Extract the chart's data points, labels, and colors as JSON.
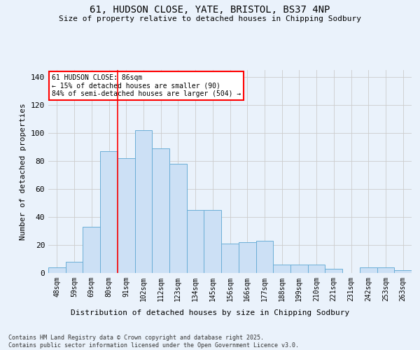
{
  "title_line1": "61, HUDSON CLOSE, YATE, BRISTOL, BS37 4NP",
  "title_line2": "Size of property relative to detached houses in Chipping Sodbury",
  "xlabel": "Distribution of detached houses by size in Chipping Sodbury",
  "ylabel": "Number of detached properties",
  "bar_labels": [
    "48sqm",
    "59sqm",
    "69sqm",
    "80sqm",
    "91sqm",
    "102sqm",
    "112sqm",
    "123sqm",
    "134sqm",
    "145sqm",
    "156sqm",
    "166sqm",
    "177sqm",
    "188sqm",
    "199sqm",
    "210sqm",
    "221sqm",
    "231sqm",
    "242sqm",
    "253sqm",
    "263sqm"
  ],
  "bar_values": [
    4,
    8,
    33,
    87,
    82,
    102,
    89,
    78,
    45,
    45,
    21,
    22,
    23,
    6,
    6,
    6,
    3,
    0,
    4,
    4,
    2
  ],
  "bar_color": "#cce0f5",
  "bar_edge_color": "#6aaed6",
  "grid_color": "#cccccc",
  "bg_color": "#eaf2fb",
  "vline_x_index": 3.5,
  "vline_color": "red",
  "annotation_text": "61 HUDSON CLOSE: 86sqm\n← 15% of detached houses are smaller (90)\n84% of semi-detached houses are larger (504) →",
  "annotation_box_color": "white",
  "annotation_box_edge": "red",
  "footnote": "Contains HM Land Registry data © Crown copyright and database right 2025.\nContains public sector information licensed under the Open Government Licence v3.0.",
  "ylim": [
    0,
    145
  ],
  "yticks": [
    0,
    20,
    40,
    60,
    80,
    100,
    120,
    140
  ]
}
